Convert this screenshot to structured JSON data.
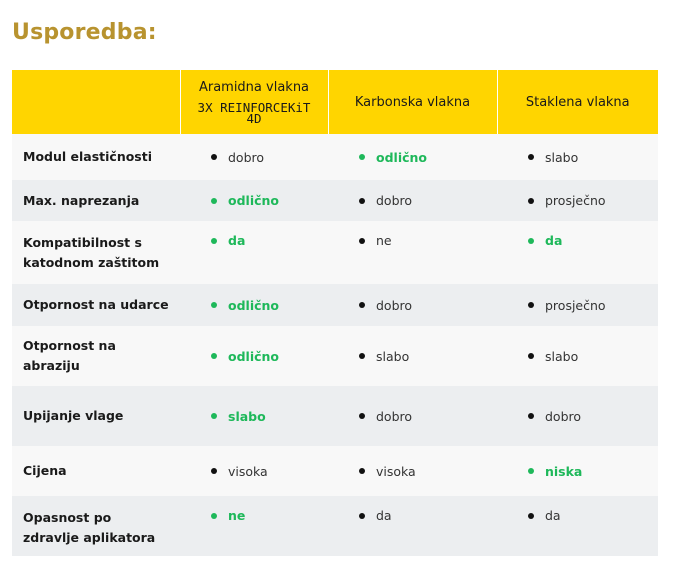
{
  "title": "Usporedba:",
  "colors": {
    "accent": "#ffd500",
    "title": "#b8932f",
    "good": "#1eb85a"
  },
  "table": {
    "headers": [
      {
        "title": ""
      },
      {
        "title": "Aramidna vlakna",
        "brand_line1": "3X REINFORCEKiT",
        "brand_line2": "4D"
      },
      {
        "title": "Karbonska vlakna"
      },
      {
        "title": "Staklena vlakna"
      }
    ],
    "rows": [
      {
        "label": "Modul elastičnosti",
        "cells": [
          {
            "text": "dobro",
            "good": false
          },
          {
            "text": "odlično",
            "good": true
          },
          {
            "text": "slabo",
            "good": false
          }
        ]
      },
      {
        "label": "Max. naprezanja",
        "cells": [
          {
            "text": "odlično",
            "good": true
          },
          {
            "text": "dobro",
            "good": false
          },
          {
            "text": "prosječno",
            "good": false
          }
        ]
      },
      {
        "label": "Kompatibilnost s katodnom zaštitom",
        "cells": [
          {
            "text": "da",
            "good": true
          },
          {
            "text": "ne",
            "good": false
          },
          {
            "text": "da",
            "good": true
          }
        ]
      },
      {
        "label": "Otpornost na udarce",
        "cells": [
          {
            "text": "odlično",
            "good": true
          },
          {
            "text": "dobro",
            "good": false
          },
          {
            "text": "prosječno",
            "good": false
          }
        ]
      },
      {
        "label": "Otpornost na abraziju",
        "cells": [
          {
            "text": "odlično",
            "good": true
          },
          {
            "text": "slabo",
            "good": false
          },
          {
            "text": "slabo",
            "good": false
          }
        ]
      },
      {
        "label": "Upijanje vlage",
        "cells": [
          {
            "text": "slabo",
            "good": true
          },
          {
            "text": "dobro",
            "good": false
          },
          {
            "text": "dobro",
            "good": false
          }
        ]
      },
      {
        "label": "Cijena",
        "cells": [
          {
            "text": "visoka",
            "good": false
          },
          {
            "text": "visoka",
            "good": false
          },
          {
            "text": "niska",
            "good": true
          }
        ]
      },
      {
        "label": "Opasnost po zdravlje aplikatora",
        "cells": [
          {
            "text": "ne",
            "good": true
          },
          {
            "text": "da",
            "good": false
          },
          {
            "text": "da",
            "good": false
          }
        ]
      }
    ]
  }
}
